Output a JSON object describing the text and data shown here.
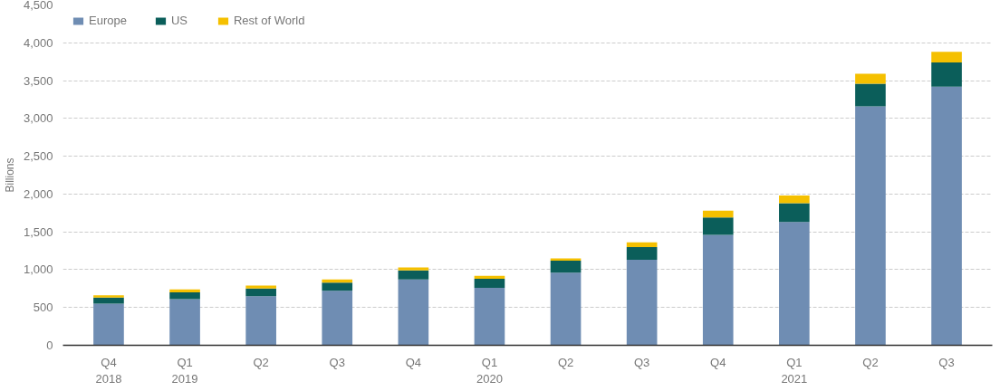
{
  "chart_data": {
    "type": "bar",
    "stacked": true,
    "ylabel": "Billions",
    "categories": [
      "Q4\n2018",
      "Q1\n2019",
      "Q2",
      "Q3",
      "Q4",
      "Q1\n2020",
      "Q2",
      "Q3",
      "Q4",
      "Q1\n2021",
      "Q2",
      "Q3"
    ],
    "series": [
      {
        "name": "Europe",
        "color": "#6f8db3",
        "values": [
          550,
          610,
          650,
          720,
          870,
          760,
          960,
          1130,
          1460,
          1630,
          3160,
          3420
        ]
      },
      {
        "name": "US",
        "color": "#0b5e5a",
        "values": [
          80,
          90,
          100,
          110,
          120,
          120,
          160,
          170,
          230,
          250,
          300,
          320
        ]
      },
      {
        "name": "Rest of World",
        "color": "#f5c000",
        "values": [
          30,
          40,
          40,
          40,
          40,
          40,
          30,
          60,
          90,
          100,
          130,
          140
        ]
      }
    ],
    "ylim": [
      0,
      4500
    ],
    "yticks": [
      {
        "value": 0,
        "label": "0"
      },
      {
        "value": 500,
        "label": "500"
      },
      {
        "value": 1000,
        "label": "1,000"
      },
      {
        "value": 1500,
        "label": "1,500"
      },
      {
        "value": 2000,
        "label": "2,000"
      },
      {
        "value": 2500,
        "label": "2,500"
      },
      {
        "value": 3000,
        "label": "3,000"
      },
      {
        "value": 3500,
        "label": "3,500"
      },
      {
        "value": 4000,
        "label": "4,000"
      },
      {
        "value": 4500,
        "label": "4,500"
      }
    ],
    "grid": "y",
    "legend": "top left"
  }
}
